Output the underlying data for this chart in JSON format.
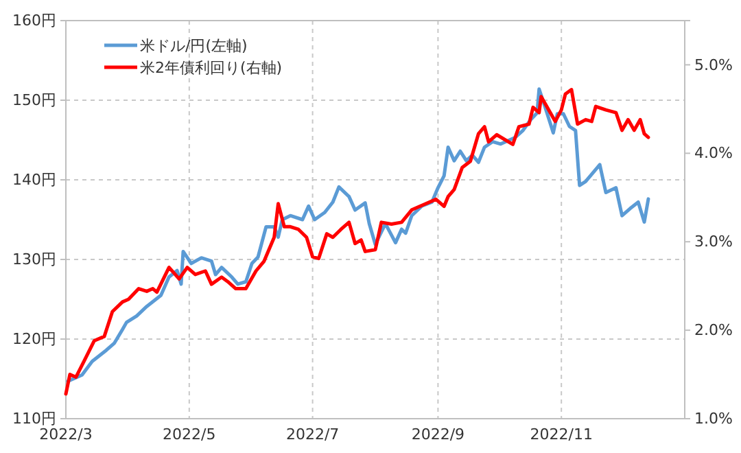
{
  "chart_data": {
    "type": "line",
    "xlim": [
      "2022-03",
      "2023-01"
    ],
    "xticks": [
      {
        "value": "2022-03",
        "label": "2022/3"
      },
      {
        "value": "2022-05",
        "label": "2022/5"
      },
      {
        "value": "2022-07",
        "label": "2022/7"
      },
      {
        "value": "2022-09",
        "label": "2022/9"
      },
      {
        "value": "2022-11",
        "label": "2022/11"
      }
    ],
    "ylim": [
      110,
      160
    ],
    "yticks": [
      {
        "value": 110,
        "label": "110円"
      },
      {
        "value": 120,
        "label": "120円"
      },
      {
        "value": 130,
        "label": "130円"
      },
      {
        "value": 140,
        "label": "140円"
      },
      {
        "value": 150,
        "label": "150円"
      },
      {
        "value": 160,
        "label": "160円"
      }
    ],
    "y2lim": [
      1.0,
      5.5
    ],
    "y2ticks": [
      {
        "value": 1.0,
        "label": "1.0%"
      },
      {
        "value": 2.0,
        "label": "2.0%"
      },
      {
        "value": 3.0,
        "label": "3.0%"
      },
      {
        "value": 4.0,
        "label": "4.0%"
      },
      {
        "value": 5.0,
        "label": "5.0%"
      }
    ],
    "grid": true,
    "legend": "top left",
    "line_style": "solid",
    "marker": "none",
    "series": [
      {
        "name": "米ドル/円(左軸)",
        "color": "#5b9bd5",
        "x": [
          "2022-03-02",
          "2022-03-09",
          "2022-03-14",
          "2022-03-21",
          "2022-03-25",
          "2022-03-29",
          "2022-03-31",
          "2022-04-05",
          "2022-04-10",
          "2022-04-17",
          "2022-04-21",
          "2022-04-25",
          "2022-04-27",
          "2022-04-28",
          "2022-05-02",
          "2022-05-07",
          "2022-05-12",
          "2022-05-14",
          "2022-05-17",
          "2022-05-22",
          "2022-05-25",
          "2022-05-29",
          "2022-06-01",
          "2022-06-04",
          "2022-06-08",
          "2022-06-12",
          "2022-06-14",
          "2022-06-16",
          "2022-06-20",
          "2022-06-26",
          "2022-06-29",
          "2022-07-02",
          "2022-07-07",
          "2022-07-11",
          "2022-07-14",
          "2022-07-19",
          "2022-07-22",
          "2022-07-27",
          "2022-07-29",
          "2022-08-01",
          "2022-08-06",
          "2022-08-11",
          "2022-08-14",
          "2022-08-16",
          "2022-08-19",
          "2022-08-24",
          "2022-08-29",
          "2022-09-01",
          "2022-09-04",
          "2022-09-06",
          "2022-09-09",
          "2022-09-12",
          "2022-09-15",
          "2022-09-18",
          "2022-09-21",
          "2022-09-24",
          "2022-09-28",
          "2022-10-02",
          "2022-10-09",
          "2022-10-13",
          "2022-10-17",
          "2022-10-20",
          "2022-10-21",
          "2022-10-24",
          "2022-10-28",
          "2022-10-30",
          "2022-11-02",
          "2022-11-05",
          "2022-11-08",
          "2022-11-10",
          "2022-11-13",
          "2022-11-16",
          "2022-11-20",
          "2022-11-23",
          "2022-11-28",
          "2022-12-01",
          "2022-12-05",
          "2022-12-09",
          "2022-12-12",
          "2022-12-14"
        ],
        "values": [
          114.7,
          115.5,
          117.2,
          118.6,
          119.5,
          121.2,
          122.1,
          122.9,
          124.1,
          125.5,
          127.8,
          128.6,
          126.9,
          131.0,
          129.5,
          130.2,
          129.8,
          128.1,
          129.0,
          127.8,
          126.9,
          127.2,
          129.5,
          130.3,
          134.1,
          134.1,
          132.8,
          135.0,
          135.5,
          135.0,
          136.7,
          135.0,
          135.9,
          137.2,
          139.1,
          137.9,
          136.2,
          137.1,
          134.5,
          131.9,
          134.5,
          132.1,
          133.8,
          133.3,
          135.5,
          136.7,
          137.2,
          139.0,
          140.5,
          144.1,
          142.4,
          143.6,
          142.4,
          143.1,
          142.2,
          144.1,
          144.8,
          144.5,
          145.3,
          146.2,
          147.6,
          148.4,
          151.4,
          149.1,
          145.9,
          148.3,
          148.3,
          146.7,
          146.2,
          139.3,
          139.8,
          140.7,
          141.9,
          138.4,
          139.0,
          135.5,
          136.4,
          137.2,
          134.7,
          137.6
        ]
      },
      {
        "name": "米2年債利回り(右軸)",
        "color": "#ff0000",
        "axis": "y2",
        "x": [
          "2022-03-01",
          "2022-03-03",
          "2022-03-06",
          "2022-03-10",
          "2022-03-15",
          "2022-03-20",
          "2022-03-24",
          "2022-03-29",
          "2022-04-01",
          "2022-04-06",
          "2022-04-10",
          "2022-04-13",
          "2022-04-15",
          "2022-04-21",
          "2022-04-26",
          "2022-04-30",
          "2022-05-04",
          "2022-05-09",
          "2022-05-12",
          "2022-05-17",
          "2022-05-20",
          "2022-05-24",
          "2022-05-29",
          "2022-06-03",
          "2022-06-07",
          "2022-06-12",
          "2022-06-14",
          "2022-06-17",
          "2022-06-20",
          "2022-06-24",
          "2022-06-28",
          "2022-07-01",
          "2022-07-04",
          "2022-07-08",
          "2022-07-11",
          "2022-07-15",
          "2022-07-19",
          "2022-07-22",
          "2022-07-25",
          "2022-07-27",
          "2022-08-01",
          "2022-08-04",
          "2022-08-09",
          "2022-08-14",
          "2022-08-19",
          "2022-08-26",
          "2022-08-31",
          "2022-09-04",
          "2022-09-06",
          "2022-09-09",
          "2022-09-13",
          "2022-09-17",
          "2022-09-21",
          "2022-09-24",
          "2022-09-26",
          "2022-09-30",
          "2022-10-08",
          "2022-10-11",
          "2022-10-16",
          "2022-10-18",
          "2022-10-21",
          "2022-10-22",
          "2022-10-25",
          "2022-10-29",
          "2022-11-01",
          "2022-11-03",
          "2022-11-06",
          "2022-11-09",
          "2022-11-13",
          "2022-11-16",
          "2022-11-18",
          "2022-11-23",
          "2022-11-28",
          "2022-12-01",
          "2022-12-04",
          "2022-12-07",
          "2022-12-10",
          "2022-12-12",
          "2022-12-14"
        ],
        "values": [
          1.28,
          1.5,
          1.47,
          1.65,
          1.88,
          1.93,
          2.21,
          2.32,
          2.35,
          2.47,
          2.44,
          2.47,
          2.43,
          2.71,
          2.58,
          2.71,
          2.63,
          2.67,
          2.52,
          2.6,
          2.55,
          2.47,
          2.47,
          2.67,
          2.78,
          3.05,
          3.43,
          3.17,
          3.17,
          3.14,
          3.05,
          2.83,
          2.81,
          3.09,
          3.05,
          3.14,
          3.22,
          2.98,
          3.02,
          2.89,
          2.91,
          3.22,
          3.2,
          3.22,
          3.36,
          3.43,
          3.48,
          3.4,
          3.51,
          3.59,
          3.84,
          3.91,
          4.22,
          4.3,
          4.13,
          4.21,
          4.1,
          4.3,
          4.33,
          4.52,
          4.46,
          4.64,
          4.52,
          4.36,
          4.49,
          4.67,
          4.72,
          4.33,
          4.38,
          4.36,
          4.53,
          4.49,
          4.46,
          4.26,
          4.38,
          4.26,
          4.38,
          4.22,
          4.18
        ]
      }
    ]
  }
}
